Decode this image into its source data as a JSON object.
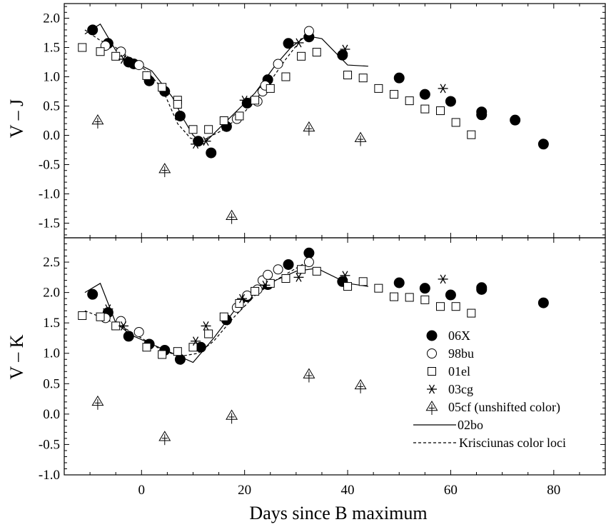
{
  "chart_data": [
    {
      "type": "scatter",
      "panel": "top",
      "xlabel": "Days since B maximum",
      "ylabel": "V – J",
      "xlim": [
        -15,
        90
      ],
      "ylim": [
        -1.75,
        2.25
      ],
      "yticks": [
        -1.5,
        -1.0,
        -0.5,
        0.0,
        0.5,
        1.0,
        1.5,
        2.0
      ],
      "yticklabels": [
        "-1.5",
        "-1.0",
        "-0.5",
        "0.0",
        "0.5",
        "1.0",
        "1.5",
        "2.0"
      ],
      "series": [
        {
          "name": "06X",
          "marker": "filled-circle",
          "points": [
            [
              -9.5,
              1.8
            ],
            [
              -6.5,
              1.57
            ],
            [
              -2.5,
              1.25
            ],
            [
              -1.5,
              1.22
            ],
            [
              1.5,
              0.93
            ],
            [
              4.5,
              0.75
            ],
            [
              7.5,
              0.33
            ],
            [
              11,
              -0.1
            ],
            [
              13.5,
              -0.3
            ],
            [
              16.5,
              0.15
            ],
            [
              20.5,
              0.55
            ],
            [
              24.5,
              0.95
            ],
            [
              28.5,
              1.57
            ],
            [
              32.5,
              1.68
            ],
            [
              39,
              1.37
            ],
            [
              50,
              0.98
            ],
            [
              55,
              0.7
            ],
            [
              60,
              0.58
            ],
            [
              66,
              0.35
            ],
            [
              66,
              0.4
            ],
            [
              72.5,
              0.26
            ],
            [
              78,
              -0.15
            ]
          ]
        },
        {
          "name": "98bu",
          "marker": "open-circle",
          "points": [
            [
              -7,
              1.53
            ],
            [
              -4,
              1.43
            ],
            [
              -0.5,
              1.2
            ],
            [
              18.5,
              0.28
            ],
            [
              22.5,
              0.58
            ],
            [
              23.5,
              0.75
            ],
            [
              24,
              0.85
            ],
            [
              26.5,
              1.22
            ],
            [
              32.5,
              1.78
            ]
          ]
        },
        {
          "name": "01el",
          "marker": "open-square",
          "points": [
            [
              -11.5,
              1.5
            ],
            [
              -8,
              1.43
            ],
            [
              -5,
              1.35
            ],
            [
              1,
              1.02
            ],
            [
              4,
              0.82
            ],
            [
              7,
              0.6
            ],
            [
              7,
              0.53
            ],
            [
              10,
              0.1
            ],
            [
              13,
              0.1
            ],
            [
              16,
              0.25
            ],
            [
              19,
              0.33
            ],
            [
              22,
              0.6
            ],
            [
              25,
              0.8
            ],
            [
              28,
              1.0
            ],
            [
              31,
              1.35
            ],
            [
              34,
              1.42
            ],
            [
              40,
              1.03
            ],
            [
              43,
              0.98
            ],
            [
              46,
              0.8
            ],
            [
              49,
              0.7
            ],
            [
              52,
              0.59
            ],
            [
              55,
              0.45
            ],
            [
              58,
              0.42
            ],
            [
              61,
              0.22
            ],
            [
              64,
              0.01
            ]
          ]
        },
        {
          "name": "03cg",
          "marker": "asterisk",
          "points": [
            [
              -3.5,
              1.3
            ],
            [
              10.5,
              -0.15
            ],
            [
              12.5,
              -0.1
            ],
            [
              20,
              0.6
            ],
            [
              30.5,
              1.58
            ],
            [
              39.5,
              1.47
            ],
            [
              58.5,
              0.8
            ]
          ]
        },
        {
          "name": "05cf (unshifted color)",
          "marker": "open-triangle",
          "points": [
            [
              -8.5,
              0.25
            ],
            [
              4.5,
              -0.58
            ],
            [
              17.5,
              -1.38
            ],
            [
              32.5,
              0.13
            ],
            [
              42.5,
              -0.05
            ]
          ]
        }
      ],
      "lines": [
        {
          "name": "02bo",
          "style": "solid",
          "points": [
            [
              -11,
              1.73
            ],
            [
              -8,
              1.9
            ],
            [
              -5,
              1.45
            ],
            [
              -2,
              1.28
            ],
            [
              2,
              1.1
            ],
            [
              6,
              0.65
            ],
            [
              8,
              0.3
            ],
            [
              10,
              0.0
            ],
            [
              12,
              -0.15
            ],
            [
              16,
              0.2
            ],
            [
              22,
              0.72
            ],
            [
              26,
              1.2
            ],
            [
              29,
              1.5
            ],
            [
              32,
              1.7
            ],
            [
              35,
              1.65
            ],
            [
              40,
              1.2
            ],
            [
              44,
              1.18
            ]
          ]
        },
        {
          "name": "Krisciunas color loci",
          "style": "dashed",
          "points": [
            [
              -11,
              1.8
            ],
            [
              -8,
              1.62
            ],
            [
              -5,
              1.5
            ],
            [
              -2,
              1.3
            ],
            [
              1,
              1.1
            ],
            [
              4,
              0.8
            ],
            [
              7,
              0.2
            ],
            [
              9.5,
              -0.05
            ],
            [
              12,
              -0.08
            ],
            [
              16,
              0.1
            ],
            [
              20,
              0.4
            ],
            [
              24,
              0.8
            ],
            [
              28,
              1.3
            ],
            [
              32,
              1.75
            ]
          ]
        }
      ]
    },
    {
      "type": "scatter",
      "panel": "bottom",
      "xlabel": "Days since B maximum",
      "ylabel": "V – K",
      "xlim": [
        -15,
        90
      ],
      "ylim": [
        -1.0,
        2.9
      ],
      "xticks": [
        0,
        20,
        40,
        60,
        80
      ],
      "xticklabels": [
        "0",
        "20",
        "40",
        "60",
        "80"
      ],
      "yticks": [
        -1.0,
        -0.5,
        0.0,
        0.5,
        1.0,
        1.5,
        2.0,
        2.5
      ],
      "yticklabels": [
        "-1.0",
        "-0.5",
        "0.0",
        "0.5",
        "1.0",
        "1.5",
        "2.0",
        "2.5"
      ],
      "series": [
        {
          "name": "06X",
          "marker": "filled-circle",
          "points": [
            [
              -9.5,
              1.97
            ],
            [
              -6.5,
              1.67
            ],
            [
              -2.5,
              1.28
            ],
            [
              1.5,
              1.15
            ],
            [
              4.5,
              1.05
            ],
            [
              7.5,
              0.9
            ],
            [
              11.5,
              1.1
            ],
            [
              16.5,
              1.55
            ],
            [
              20.5,
              1.93
            ],
            [
              24.5,
              2.13
            ],
            [
              28.5,
              2.46
            ],
            [
              32.5,
              2.65
            ],
            [
              39,
              2.18
            ],
            [
              50,
              2.16
            ],
            [
              55,
              2.07
            ],
            [
              60,
              1.96
            ],
            [
              66,
              2.05
            ],
            [
              66,
              2.08
            ],
            [
              78,
              1.83
            ]
          ]
        },
        {
          "name": "98bu",
          "marker": "open-circle",
          "points": [
            [
              -7,
              1.58
            ],
            [
              -4,
              1.53
            ],
            [
              -0.5,
              1.35
            ],
            [
              18.5,
              1.75
            ],
            [
              20.5,
              1.95
            ],
            [
              22.5,
              2.05
            ],
            [
              23.5,
              2.2
            ],
            [
              24.5,
              2.29
            ],
            [
              26.5,
              2.38
            ],
            [
              32.5,
              2.5
            ]
          ]
        },
        {
          "name": "01el",
          "marker": "open-square",
          "points": [
            [
              -11.5,
              1.62
            ],
            [
              -8,
              1.6
            ],
            [
              -5,
              1.45
            ],
            [
              1,
              1.1
            ],
            [
              4,
              0.98
            ],
            [
              7,
              1.03
            ],
            [
              10,
              1.1
            ],
            [
              13,
              1.32
            ],
            [
              16,
              1.6
            ],
            [
              19,
              1.82
            ],
            [
              22,
              2.02
            ],
            [
              25,
              2.15
            ],
            [
              28,
              2.23
            ],
            [
              31,
              2.38
            ],
            [
              34,
              2.35
            ],
            [
              40,
              2.1
            ],
            [
              43,
              2.18
            ],
            [
              46,
              2.07
            ],
            [
              49,
              1.93
            ],
            [
              52,
              1.92
            ],
            [
              55,
              1.88
            ],
            [
              58,
              1.77
            ],
            [
              61,
              1.77
            ],
            [
              64,
              1.66
            ]
          ]
        },
        {
          "name": "03cg",
          "marker": "asterisk",
          "points": [
            [
              -6.5,
              1.73
            ],
            [
              -3.5,
              1.45
            ],
            [
              10.5,
              1.2
            ],
            [
              12.5,
              1.45
            ],
            [
              19.5,
              1.9
            ],
            [
              24,
              2.12
            ],
            [
              30.5,
              2.25
            ],
            [
              39.5,
              2.28
            ],
            [
              58.5,
              2.22
            ]
          ]
        },
        {
          "name": "05cf (unshifted color)",
          "marker": "open-triangle",
          "points": [
            [
              -8.5,
              0.2
            ],
            [
              4.5,
              -0.38
            ],
            [
              17.5,
              -0.03
            ],
            [
              32.5,
              0.65
            ],
            [
              42.5,
              0.47
            ]
          ]
        }
      ],
      "lines": [
        {
          "name": "02bo",
          "style": "solid",
          "points": [
            [
              -11,
              2.0
            ],
            [
              -8,
              2.15
            ],
            [
              -5,
              1.5
            ],
            [
              -2,
              1.3
            ],
            [
              2,
              1.15
            ],
            [
              6,
              1.0
            ],
            [
              10,
              0.85
            ],
            [
              14,
              1.25
            ],
            [
              18,
              1.7
            ],
            [
              22,
              2.0
            ],
            [
              26,
              2.2
            ],
            [
              30,
              2.35
            ],
            [
              34,
              2.4
            ],
            [
              40,
              2.15
            ],
            [
              44,
              2.1
            ]
          ]
        },
        {
          "name": "Krisciunas color loci",
          "style": "dashed",
          "points": [
            [
              -11,
              1.7
            ],
            [
              -8,
              1.6
            ],
            [
              -4,
              1.45
            ],
            [
              0,
              1.25
            ],
            [
              4,
              1.05
            ],
            [
              7.5,
              0.95
            ],
            [
              11,
              1.0
            ],
            [
              14,
              1.2
            ],
            [
              18,
              1.6
            ],
            [
              22,
              1.95
            ],
            [
              26,
              2.2
            ],
            [
              30,
              2.4
            ],
            [
              33,
              2.55
            ]
          ]
        }
      ]
    }
  ],
  "legend": {
    "placement": "lower-right",
    "entries": [
      {
        "label": "06X",
        "marker": "filled-circle"
      },
      {
        "label": "98bu",
        "marker": "open-circle"
      },
      {
        "label": "01el",
        "marker": "open-square"
      },
      {
        "label": "03cg",
        "marker": "asterisk"
      },
      {
        "label": "05cf (unshifted color)",
        "marker": "open-triangle"
      },
      {
        "label": "02bo",
        "marker": "solid-line"
      },
      {
        "label": "Krisciunas color loci",
        "marker": "dashed-line"
      }
    ]
  }
}
